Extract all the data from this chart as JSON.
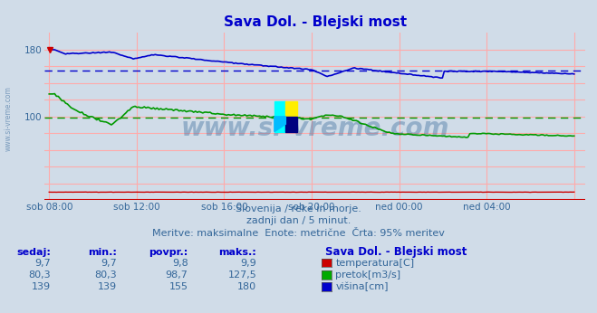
{
  "title": "Sava Dol. - Blejski most",
  "title_color": "#0000cc",
  "bg_color": "#d0dce8",
  "plot_bg_color": "#d0dce8",
  "grid_color": "#ffaaaa",
  "ylim": [
    0,
    200
  ],
  "ytick_labels": [
    "100",
    "180"
  ],
  "ytick_values": [
    100,
    180
  ],
  "xtick_labels": [
    "sob 08:00",
    "sob 12:00",
    "sob 16:00",
    "sob 20:00",
    "ned 00:00",
    "ned 04:00"
  ],
  "xtick_positions": [
    0,
    4,
    8,
    12,
    16,
    20
  ],
  "subtitle1": "Slovenija / reke in morje.",
  "subtitle2": "zadnji dan / 5 minut.",
  "subtitle3": "Meritve: maksimalne  Enote: metrične  Črta: 95% meritev",
  "table_headers": [
    "sedaj:",
    "min.:",
    "povpr.:",
    "maks.:"
  ],
  "table_station": "Sava Dol. - Blejski most",
  "rows": [
    {
      "vals": [
        "9,7",
        "9,7",
        "9,8",
        "9,9"
      ],
      "label": "temperatura[C]",
      "color": "#cc0000"
    },
    {
      "vals": [
        "80,3",
        "80,3",
        "98,7",
        "127,5"
      ],
      "label": "pretok[m3/s]",
      "color": "#00aa00"
    },
    {
      "vals": [
        "139",
        "139",
        "155",
        "180"
      ],
      "label": "višina[cm]",
      "color": "#0000cc"
    }
  ],
  "watermark": "www.si-vreme.com",
  "avg_pretok": 98.7,
  "avg_visina": 155.0,
  "line_color_temp": "#cc0000",
  "line_color_pretok": "#009900",
  "line_color_visina": "#0000cc"
}
